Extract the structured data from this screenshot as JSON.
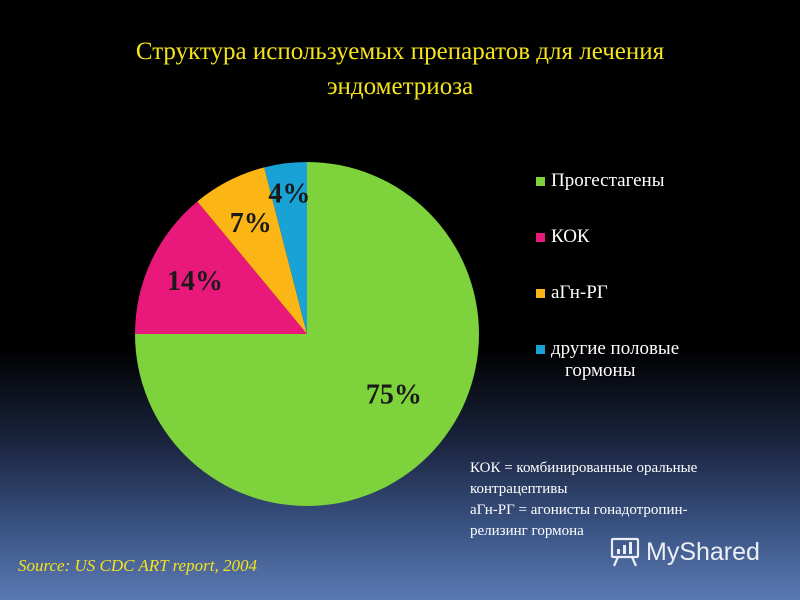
{
  "title": {
    "line1": "Структура используемых препаратов для лечения",
    "line2": "эндометриоза"
  },
  "chart_data": {
    "type": "pie",
    "title": "Структура используемых препаратов для лечения эндометриоза",
    "labels": [
      "Прогестагены",
      "КОК",
      "аГн-РГ",
      "другие половые гормоны"
    ],
    "values": [
      75,
      14,
      7,
      4
    ],
    "data_labels": [
      "75%",
      "14%",
      "7%",
      "4%"
    ],
    "colors": [
      "#7ed23c",
      "#e8197a",
      "#fbb515",
      "#18a2d6"
    ],
    "legend_position": "right"
  },
  "legend": {
    "items": [
      {
        "label_lines": [
          "Прогестагены"
        ],
        "color": "#7ed23c"
      },
      {
        "label_lines": [
          "КОК"
        ],
        "color": "#e8197a"
      },
      {
        "label_lines": [
          "аГн-РГ"
        ],
        "color": "#fbb515"
      },
      {
        "label_lines": [
          "другие половые",
          "гормоны"
        ],
        "color": "#18a2d6"
      }
    ]
  },
  "notes": {
    "line1": "КОК = комбинированные оральные",
    "line2": "контрацептивы",
    "line3": "аГн-РГ = агонисты гонадотропин-",
    "line4": "релизинг гормона"
  },
  "source": "Source: US CDC ART report, 2004",
  "watermark": {
    "text": "MyShared",
    "icon": "presentation-board-icon"
  }
}
